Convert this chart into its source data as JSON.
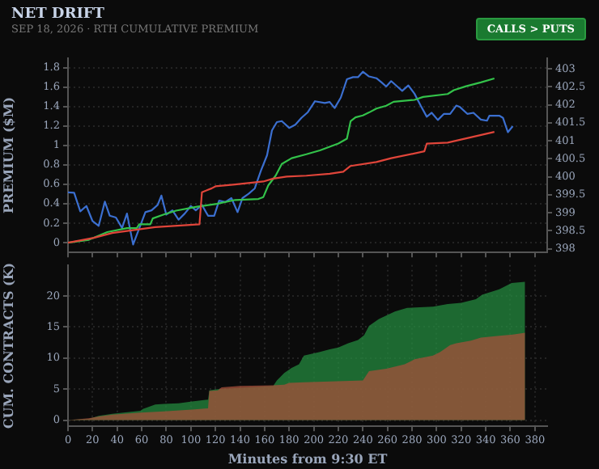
{
  "chart_data": [
    {
      "type": "line",
      "title": "NET DRIFT",
      "subtitle": "SEP 18, 2026 · RTH CUMULATIVE PREMIUM",
      "ylabel": "PREMIUM ($M)",
      "annotations": [
        "CALLS > PUTS"
      ],
      "xlim": [
        0,
        390
      ],
      "xticks": [
        {
          "value": 0,
          "label": null
        },
        {
          "value": 20,
          "label": null
        },
        {
          "value": 40,
          "label": null
        },
        {
          "value": 60,
          "label": null
        },
        {
          "value": 80,
          "label": null
        },
        {
          "value": 100,
          "label": null
        },
        {
          "value": 120,
          "label": null
        },
        {
          "value": 140,
          "label": null
        },
        {
          "value": 160,
          "label": null
        },
        {
          "value": 180,
          "label": null
        },
        {
          "value": 200,
          "label": null
        },
        {
          "value": 220,
          "label": null
        },
        {
          "value": 240,
          "label": null
        },
        {
          "value": 260,
          "label": null
        },
        {
          "value": 280,
          "label": null
        },
        {
          "value": 300,
          "label": null
        },
        {
          "value": 320,
          "label": null
        },
        {
          "value": 340,
          "label": null
        },
        {
          "value": 360,
          "label": null
        },
        {
          "value": 380,
          "label": null
        }
      ],
      "ylim": [
        -0.1,
        1.9
      ],
      "yticks": [
        0,
        0.2,
        0.4,
        0.6,
        0.8,
        1,
        1.2,
        1.4,
        1.6,
        1.8
      ],
      "y2lim": [
        397.9,
        403.3
      ],
      "y2ticks": [
        398,
        398.5,
        399,
        399.5,
        400,
        400.5,
        401,
        401.5,
        402,
        402.5,
        403
      ],
      "grid": "y",
      "tick_labels": "y",
      "legend": false,
      "series": [
        {
          "color": "#3b6fd0",
          "axis": "y2",
          "x": [
            0,
            5,
            10,
            15,
            20,
            25,
            30,
            34,
            39,
            44,
            48,
            53,
            58,
            63,
            68,
            73,
            76,
            80,
            85,
            90,
            95,
            100,
            104,
            109,
            114,
            119,
            123,
            128,
            133,
            138,
            142,
            147,
            152,
            157,
            162,
            166,
            170,
            174,
            180,
            185,
            190,
            195,
            201,
            209,
            213,
            217,
            222,
            227,
            232,
            236,
            240,
            245,
            251,
            255,
            259,
            263,
            268,
            272,
            277,
            282,
            287,
            292,
            296,
            301,
            306,
            311,
            316,
            319,
            325,
            330,
            336,
            341,
            343,
            351,
            354,
            358,
            362
          ],
          "values": [
            399.57,
            399.56,
            399.04,
            399.19,
            398.77,
            398.64,
            399.31,
            398.92,
            398.87,
            398.58,
            398.98,
            398.12,
            398.57,
            399.02,
            399.07,
            399.22,
            399.48,
            398.95,
            399.07,
            398.81,
            398.98,
            399.19,
            399.07,
            399.22,
            398.92,
            398.92,
            399.34,
            399.3,
            399.41,
            399.02,
            399.41,
            399.53,
            399.68,
            400.17,
            400.6,
            401.29,
            401.52,
            401.55,
            401.36,
            401.45,
            401.64,
            401.79,
            402.1,
            402.05,
            402.08,
            401.91,
            402.2,
            402.71,
            402.77,
            402.77,
            402.92,
            402.79,
            402.74,
            402.63,
            402.51,
            402.66,
            402.51,
            402.39,
            402.54,
            402.31,
            401.98,
            401.67,
            401.78,
            401.58,
            401.75,
            401.75,
            401.98,
            401.94,
            401.75,
            401.78,
            401.59,
            401.56,
            401.7,
            401.7,
            401.64,
            401.24,
            401.41
          ]
        },
        {
          "color": "#33c24a",
          "x": [
            0,
            17,
            32,
            48,
            56,
            58,
            67,
            69,
            78,
            88,
            105,
            121,
            136,
            155,
            159,
            163,
            169,
            174,
            182,
            194,
            205,
            220,
            227,
            230,
            234,
            240,
            245,
            251,
            259,
            265,
            282,
            289,
            309,
            314,
            324,
            336,
            347
          ],
          "values": [
            0,
            0.03,
            0.11,
            0.15,
            0.15,
            0.19,
            0.19,
            0.25,
            0.29,
            0.33,
            0.37,
            0.4,
            0.44,
            0.45,
            0.47,
            0.59,
            0.69,
            0.81,
            0.87,
            0.91,
            0.95,
            1.02,
            1.07,
            1.25,
            1.29,
            1.31,
            1.34,
            1.38,
            1.41,
            1.45,
            1.47,
            1.5,
            1.53,
            1.57,
            1.61,
            1.65,
            1.69
          ]
        },
        {
          "color": "#e0453a",
          "x": [
            0,
            21,
            36,
            71,
            107,
            109,
            117,
            120,
            136,
            159,
            167,
            178,
            194,
            213,
            224,
            230,
            251,
            263,
            290,
            292,
            309,
            347
          ],
          "values": [
            0,
            0.05,
            0.1,
            0.16,
            0.19,
            0.52,
            0.56,
            0.58,
            0.6,
            0.63,
            0.66,
            0.68,
            0.69,
            0.71,
            0.73,
            0.79,
            0.83,
            0.87,
            0.94,
            1.02,
            1.03,
            1.14
          ]
        }
      ]
    },
    {
      "type": "area",
      "ylabel": "CUM. CONTRACTS (K)",
      "xlabel": "Minutes from 9:30 ET",
      "xlim": [
        0,
        390
      ],
      "xticks": [
        0,
        20,
        40,
        60,
        80,
        100,
        120,
        140,
        160,
        180,
        200,
        220,
        240,
        260,
        280,
        300,
        320,
        340,
        360,
        380
      ],
      "ylim": [
        -1,
        25
      ],
      "yticks": [
        0,
        5,
        10,
        15,
        20
      ],
      "grid": true,
      "legend": false,
      "series": [
        {
          "color": "#24893f",
          "x": [
            0,
            17,
            25,
            36,
            59,
            61,
            71,
            78,
            90,
            101,
            114,
            115,
            122,
            167,
            170,
            176,
            182,
            188,
            192,
            205,
            213,
            220,
            228,
            236,
            241,
            245,
            253,
            266,
            276,
            297,
            309,
            320,
            332,
            337,
            351,
            361,
            372
          ],
          "values": [
            0,
            0.2,
            0.7,
            1,
            1.5,
            1.8,
            2.5,
            2.6,
            2.7,
            3,
            3.3,
            4.8,
            5,
            5.5,
            6.4,
            7.6,
            8.4,
            9,
            10.4,
            11,
            11.4,
            11.7,
            12.4,
            12.9,
            13.7,
            15.2,
            16.3,
            17.5,
            18.1,
            18.3,
            18.7,
            18.9,
            19.5,
            20.2,
            21.1,
            22.1,
            22.3
          ]
        },
        {
          "color": "#a5503a",
          "x": [
            0,
            17,
            25,
            36,
            59,
            78,
            101,
            114,
            115,
            122,
            125,
            140,
            167,
            176,
            180,
            192,
            240,
            245,
            259,
            274,
            282,
            297,
            303,
            311,
            316,
            328,
            336,
            351,
            362,
            372
          ],
          "values": [
            0,
            0.3,
            0.6,
            0.9,
            1.2,
            1.4,
            1.7,
            1.9,
            4.7,
            4.8,
            5.3,
            5.5,
            5.6,
            5.7,
            6,
            6.1,
            6.4,
            7.9,
            8.3,
            9,
            9.8,
            10.4,
            11,
            12.1,
            12.4,
            12.8,
            13.3,
            13.6,
            13.8,
            14.1
          ]
        }
      ]
    }
  ]
}
